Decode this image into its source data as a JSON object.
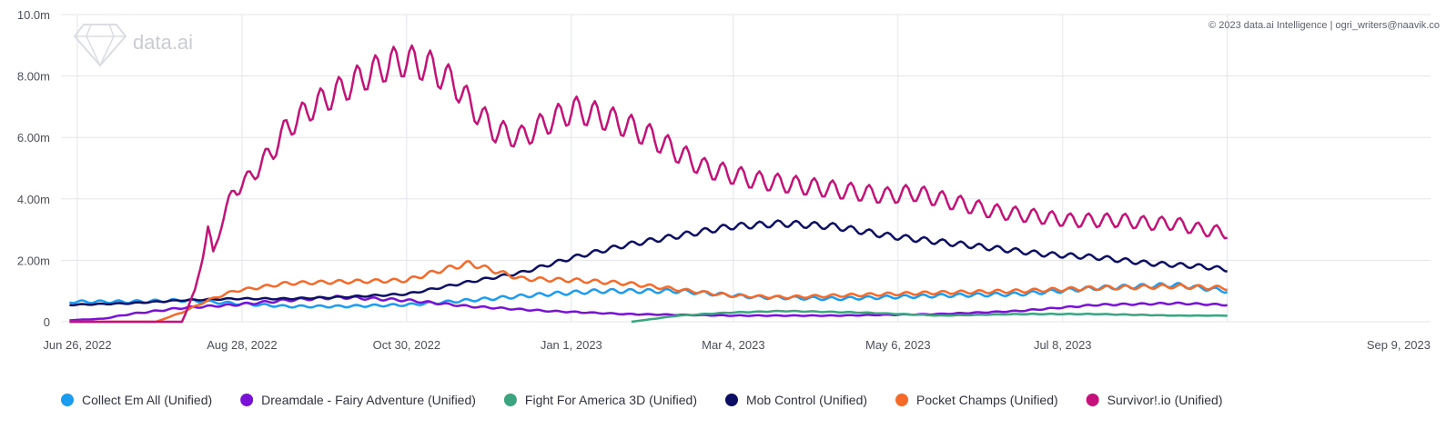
{
  "chart_data": {
    "type": "line",
    "title": "",
    "xlabel": "",
    "ylabel": "",
    "ylim": [
      0,
      10000000
    ],
    "y_ticks": [
      {
        "value": 0,
        "label": "0"
      },
      {
        "value": 2000000,
        "label": "2.00m"
      },
      {
        "value": 4000000,
        "label": "4.00m"
      },
      {
        "value": 6000000,
        "label": "6.00m"
      },
      {
        "value": 8000000,
        "label": "8.00m"
      },
      {
        "value": 10000000,
        "label": "10.0m"
      }
    ],
    "x_range": [
      0,
      449
    ],
    "x_ticks": [
      {
        "day": 0,
        "label": "Jun 26, 2022"
      },
      {
        "day": 63,
        "label": "Aug 28, 2022"
      },
      {
        "day": 126,
        "label": "Oct 30, 2022"
      },
      {
        "day": 189,
        "label": "Jan 1, 2023"
      },
      {
        "day": 251,
        "label": "Mar 4, 2023"
      },
      {
        "day": 314,
        "label": "May 6, 2023"
      },
      {
        "day": 377,
        "label": "Jul 8, 2023"
      },
      {
        "day": 440,
        "label": "Sep 9, 2023"
      }
    ],
    "series": [
      {
        "name": "Collect Em All (Unified)",
        "color": "#1a9cf0",
        "x": [
          -3,
          20,
          40,
          60,
          80,
          100,
          126,
          150,
          180,
          200,
          230,
          260,
          290,
          330,
          360,
          390,
          420,
          440
        ],
        "y": [
          650000,
          650000,
          700000,
          600000,
          500000,
          500000,
          550000,
          700000,
          900000,
          1000000,
          1000000,
          800000,
          750000,
          850000,
          900000,
          1100000,
          1200000,
          1000000
        ]
      },
      {
        "name": "Dreamdale - Fairy Adventure (Unified)",
        "color": "#7a12d6",
        "x": [
          -3,
          10,
          20,
          40,
          60,
          80,
          100,
          126,
          150,
          180,
          210,
          250,
          290,
          330,
          360,
          390,
          420,
          440
        ],
        "y": [
          50000,
          100000,
          250000,
          450000,
          550000,
          700000,
          800000,
          700000,
          500000,
          350000,
          250000,
          200000,
          200000,
          250000,
          350000,
          550000,
          600000,
          550000
        ]
      },
      {
        "name": "Fight For America 3D (Unified)",
        "color": "#3aa57f",
        "x": [
          212,
          230,
          250,
          270,
          300,
          330,
          360,
          390,
          420,
          440
        ],
        "y": [
          0,
          200000,
          300000,
          350000,
          300000,
          200000,
          250000,
          250000,
          200000,
          200000
        ]
      },
      {
        "name": "Mob Control (Unified)",
        "color": "#0c0f64",
        "x": [
          -3,
          20,
          40,
          60,
          80,
          100,
          126,
          150,
          170,
          190,
          210,
          230,
          250,
          270,
          290,
          310,
          330,
          350,
          370,
          390,
          410,
          430,
          440
        ],
        "y": [
          550000,
          600000,
          700000,
          750000,
          750000,
          800000,
          900000,
          1300000,
          1600000,
          2100000,
          2500000,
          2800000,
          3100000,
          3200000,
          3100000,
          2800000,
          2600000,
          2400000,
          2200000,
          2100000,
          1900000,
          1800000,
          1700000
        ]
      },
      {
        "name": "Pocket Champs (Unified)",
        "color": "#f56a29",
        "x": [
          -3,
          30,
          40,
          50,
          60,
          80,
          100,
          126,
          140,
          150,
          160,
          170,
          190,
          210,
          230,
          250,
          270,
          290,
          310,
          330,
          360,
          390,
          420,
          440
        ],
        "y": [
          0,
          0,
          300000,
          700000,
          1000000,
          1250000,
          1300000,
          1350000,
          1700000,
          1900000,
          1650000,
          1400000,
          1350000,
          1250000,
          1050000,
          850000,
          800000,
          850000,
          900000,
          950000,
          1000000,
          1100000,
          1150000,
          1100000
        ]
      },
      {
        "name": "Survivor!.io (Unified)",
        "color": "#c4127a",
        "x": [
          -3,
          40,
          45,
          50,
          52,
          55,
          60,
          65,
          70,
          75,
          80,
          90,
          100,
          110,
          120,
          126,
          135,
          145,
          150,
          160,
          170,
          180,
          190,
          200,
          210,
          220,
          230,
          240,
          250,
          260,
          270,
          280,
          290,
          300,
          310,
          320,
          330,
          340,
          350,
          360,
          370,
          380,
          390,
          400,
          410,
          420,
          430,
          440
        ],
        "y": [
          0,
          0,
          1000000,
          3000000,
          2200000,
          3200000,
          4300000,
          4600000,
          5100000,
          5600000,
          6300000,
          7000000,
          7500000,
          8000000,
          8400000,
          8500000,
          8300000,
          7700000,
          7100000,
          6200000,
          6000000,
          6500000,
          6900000,
          6700000,
          6400000,
          6000000,
          5500000,
          5000000,
          4800000,
          4600000,
          4500000,
          4400000,
          4300000,
          4200000,
          4100000,
          4200000,
          4000000,
          3800000,
          3600000,
          3500000,
          3400000,
          3300000,
          3300000,
          3300000,
          3200000,
          3200000,
          3000000,
          2900000
        ]
      }
    ]
  },
  "watermark": {
    "brand": "data.ai"
  },
  "copyright": "© 2023 data.ai Intelligence | ogri_writers@naavik.co"
}
